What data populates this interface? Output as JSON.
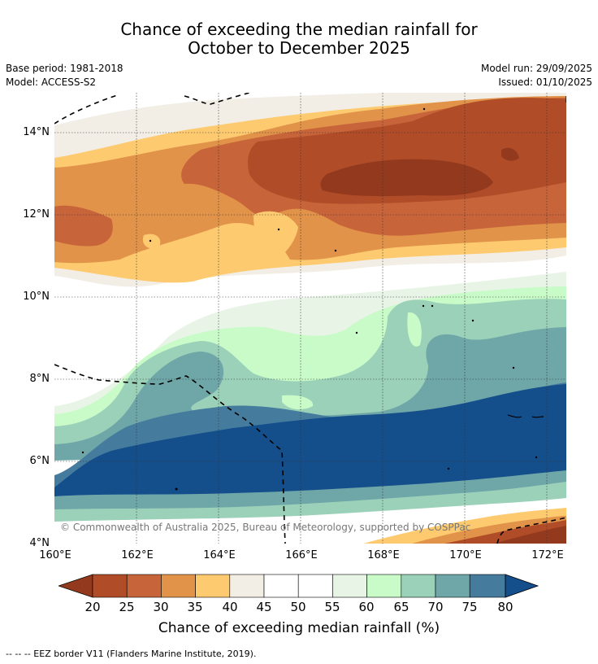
{
  "title_line1": "Chance of exceeding the median rainfall for",
  "title_line2": "October to December 2025",
  "base_period": "Base period: 1981-2018",
  "model": "Model: ACCESS-S2",
  "model_run": "Model run: 29/09/2025",
  "issued": "Issued: 01/10/2025",
  "copyright": "© Commonwealth of Australia 2025, Bureau of Meteorology, supported by COSPPac",
  "lat_labels": [
    "14°N",
    "12°N",
    "10°N",
    "8°N",
    "6°N",
    "4°N"
  ],
  "lon_labels": [
    "160°E",
    "162°E",
    "164°E",
    "166°E",
    "168°E",
    "170°E",
    "172°E"
  ],
  "colorbar": {
    "title": "Chance of exceeding median rainfall (%)",
    "labels": [
      "20",
      "25",
      "30",
      "35",
      "40",
      "45",
      "50",
      "55",
      "60",
      "65",
      "70",
      "75",
      "80"
    ],
    "colors": {
      "lt20": "#933a1e",
      "c20_25": "#b14c28",
      "c25_30": "#c8643a",
      "c30_35": "#e1934a",
      "c35_40": "#fdca6f",
      "c40_45": "#f2eee6",
      "c45_50": "#ffffff",
      "c50_55": "#ffffff",
      "c55_60": "#e8f5e6",
      "c60_65": "#c9fbc9",
      "c65_70": "#9bd1b8",
      "c70_75": "#6fa6a8",
      "c75_80": "#457c9e",
      "gt80": "#144f8c"
    }
  },
  "legend_note": "--  --  -- EEZ border V11 (Flanders Marine Institute, 2019)."
}
